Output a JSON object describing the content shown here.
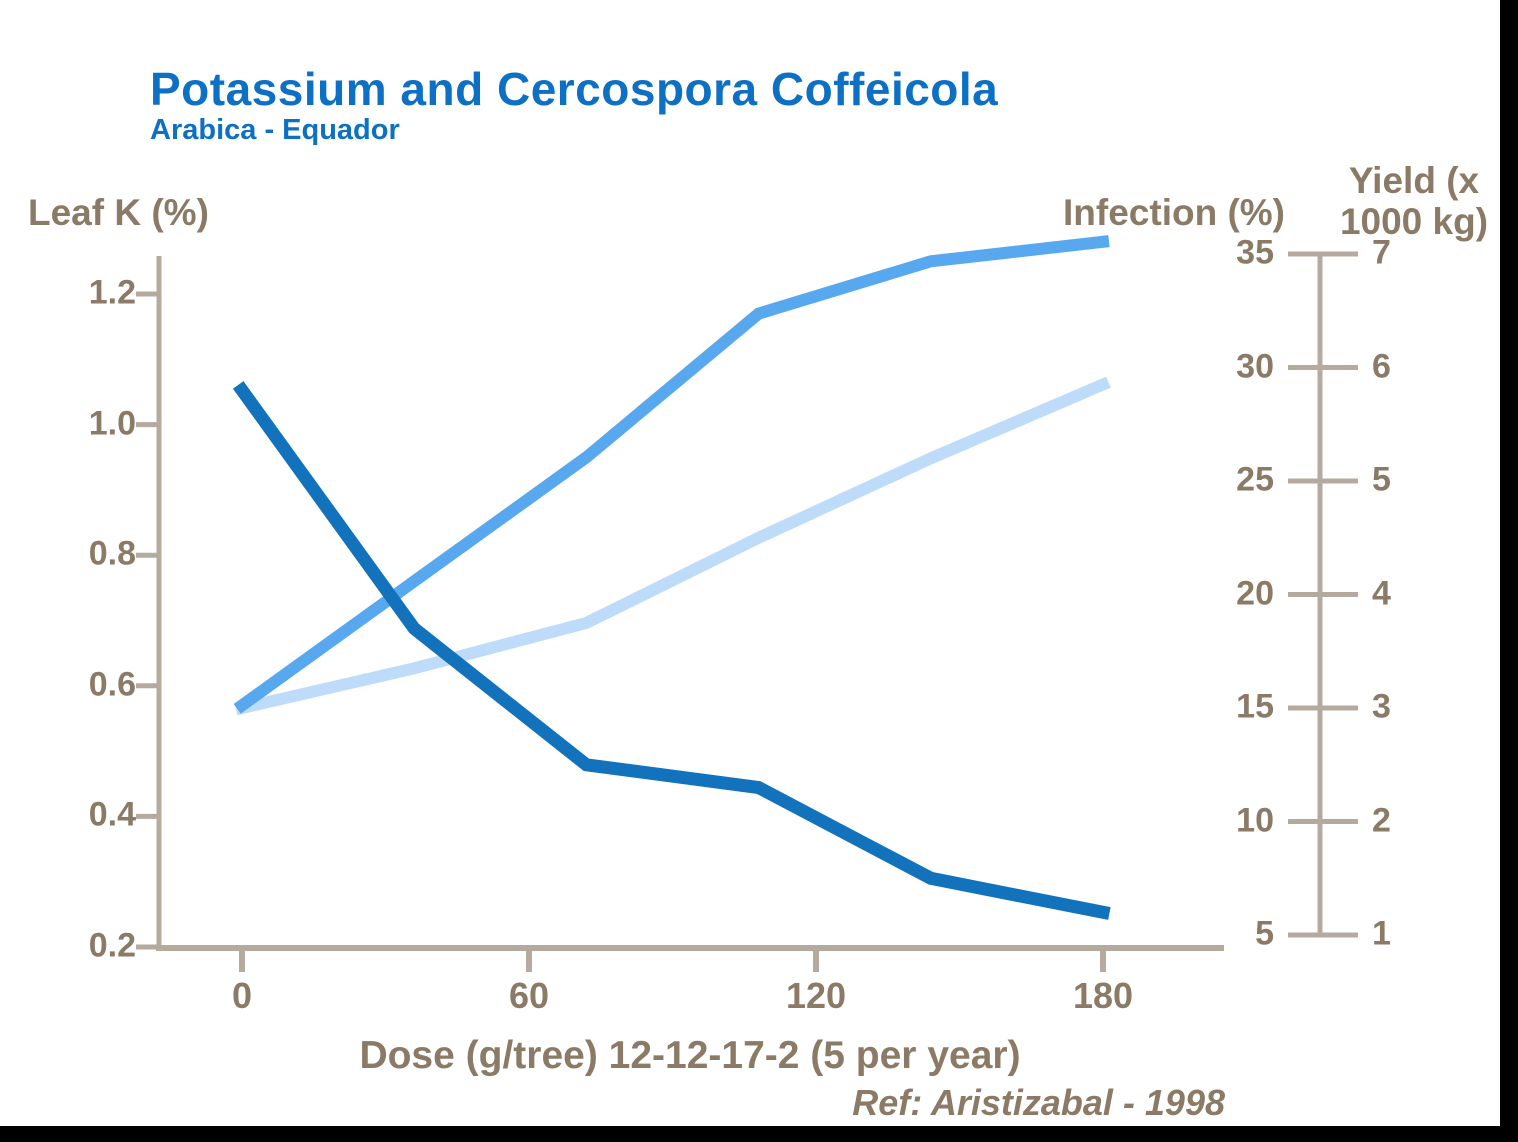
{
  "title": "Potassium and Cercospora Coffeicola",
  "subtitle": "Arabica - Equador",
  "ref_note": "Ref: Aristizabal - 1998",
  "axes": {
    "left": {
      "label": "Leaf K (%)",
      "tick_labels": [
        "1.2",
        "1.0",
        "0.8",
        "0.6",
        "0.4",
        "0.2"
      ]
    },
    "right_infection": {
      "label": "Infection (%)",
      "tick_labels": [
        "35",
        "30",
        "25",
        "20",
        "15",
        "10",
        "5"
      ]
    },
    "right_yield": {
      "label_line1": "Yield (x",
      "label_line2": "1000 kg)",
      "tick_labels": [
        "7",
        "6",
        "5",
        "4",
        "3",
        "2",
        "1"
      ]
    },
    "x": {
      "label": "Dose (g/tree) 12-12-17-2 (5 per year)",
      "tick_labels": [
        "0",
        "60",
        "120",
        "180"
      ]
    }
  },
  "colors": {
    "title_blue": "#0d70c4",
    "label_brown": "#8a7a66",
    "axis_line": "#b4aa9e",
    "leaf_k_line": "#58a8f0",
    "infection_line": "#1273bc",
    "yield_line": "#bedcf9"
  },
  "chart_data": {
    "type": "line",
    "title": "Potassium and Cercospora Coffeicola",
    "subtitle": "Arabica - Equador",
    "x": [
      0,
      36,
      72,
      108,
      144,
      180
    ],
    "xlabel": "Dose (g/tree) 12-12-17-2 (5 per year)",
    "x_ticks": [
      0,
      60,
      120,
      180
    ],
    "grid": false,
    "legend": "none",
    "series": [
      {
        "name": "Leaf K (%)",
        "axis": "left",
        "color": "#58a8f0",
        "values": [
          0.57,
          0.76,
          0.95,
          1.17,
          1.25,
          1.28
        ]
      },
      {
        "name": "Infection (%)",
        "axis": "infection",
        "color": "#1273bc",
        "values": [
          29,
          18.5,
          12.5,
          11.5,
          7.5,
          6
        ]
      },
      {
        "name": "Yield (x 1000 kg)",
        "axis": "yield",
        "color": "#bedcf9",
        "values": [
          3.0,
          3.35,
          3.75,
          4.5,
          5.2,
          5.85
        ]
      }
    ],
    "axis_ranges": {
      "left": [
        0.2,
        1.2
      ],
      "infection": [
        5,
        35
      ],
      "yield": [
        1,
        7
      ],
      "x": [
        0,
        180
      ]
    }
  }
}
